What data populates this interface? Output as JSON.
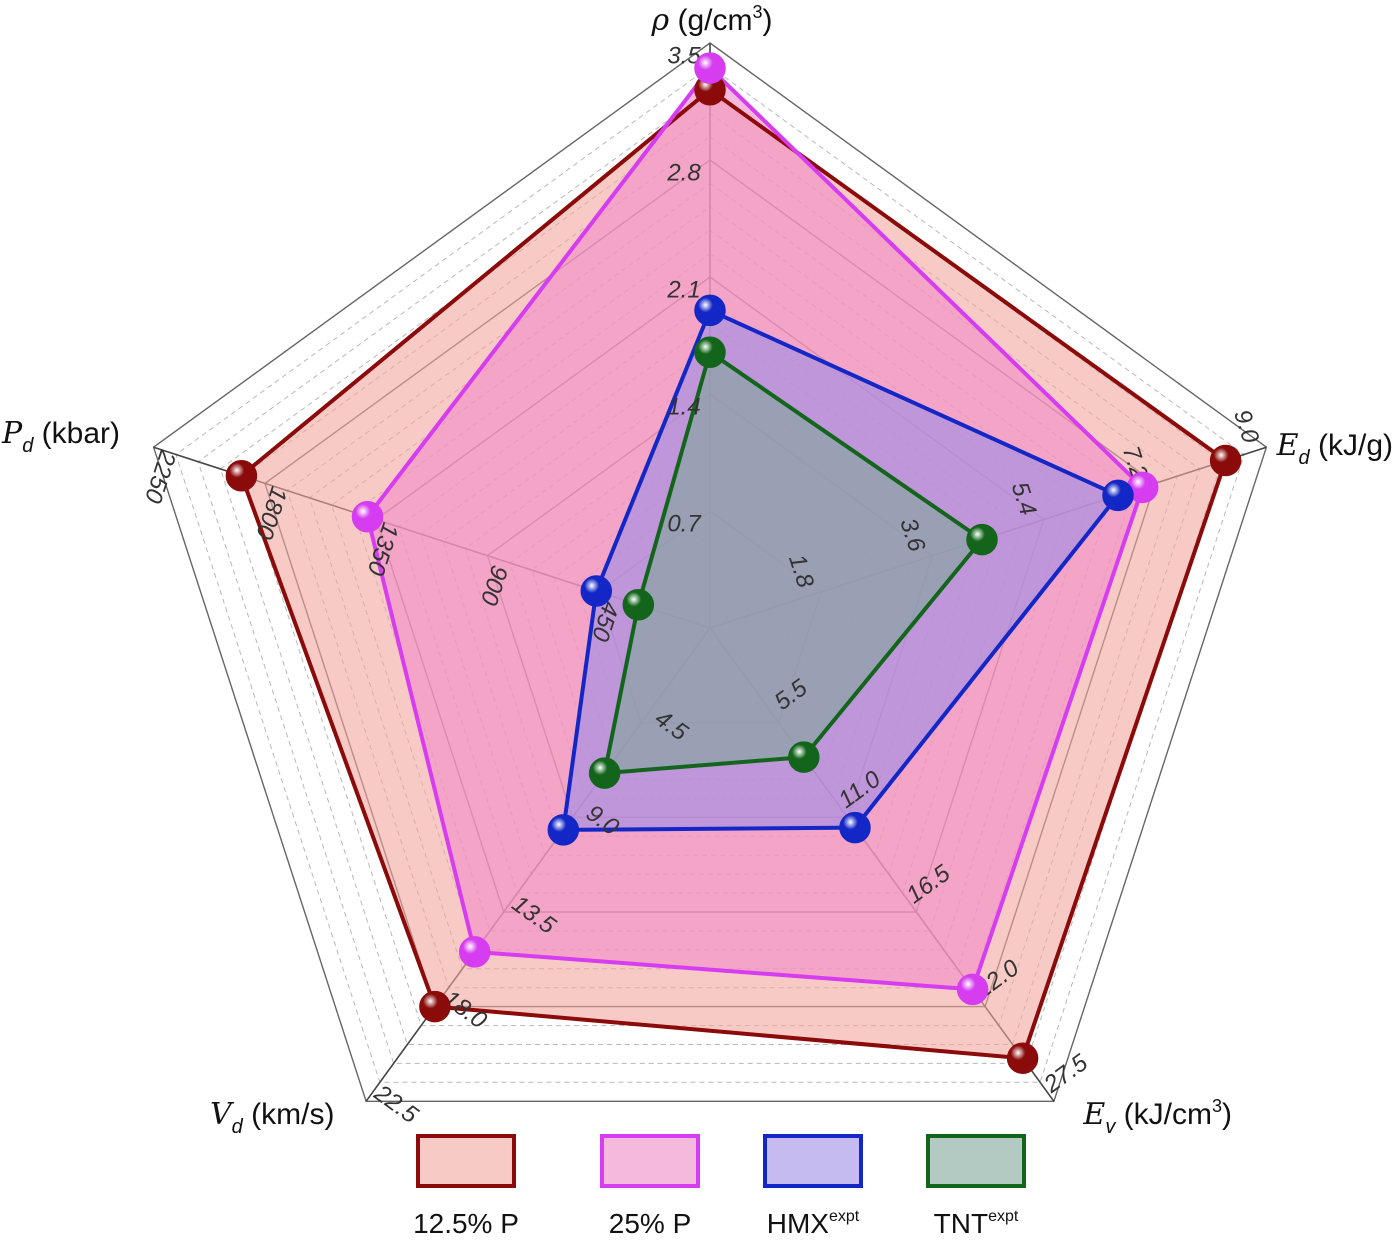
{
  "chart_data": {
    "type": "radar",
    "axes": [
      {
        "key": "density",
        "symbol": "ρ",
        "subscript": "",
        "unit": " (g/cm",
        "unit_sup": "3",
        "unit_end": ")",
        "max": 3.5,
        "tick_labels": [
          "0.7",
          "1.4",
          "2.1",
          "2.8",
          "3.5"
        ]
      },
      {
        "key": "ed",
        "symbol": "E",
        "subscript": "d",
        "unit": " (kJ/g)",
        "unit_sup": "",
        "unit_end": "",
        "max": 9.0,
        "tick_labels": [
          "1.8",
          "3.6",
          "5.4",
          "7.2",
          "9.0"
        ]
      },
      {
        "key": "ev",
        "symbol": "E",
        "subscript": "v",
        "unit": " (kJ/cm",
        "unit_sup": "3",
        "unit_end": ")",
        "max": 27.5,
        "tick_labels": [
          "5.5",
          "11.0",
          "16.5",
          "22.0",
          "27.5"
        ]
      },
      {
        "key": "vd",
        "symbol": "V",
        "subscript": "d",
        "unit": " (km/s)",
        "unit_sup": "",
        "unit_end": "",
        "max": 22.5,
        "tick_labels": [
          "4.5",
          "9.0",
          "13.5",
          "18.0",
          "22.5"
        ]
      },
      {
        "key": "pd",
        "symbol": "P",
        "subscript": "d",
        "unit": " (kbar)",
        "unit_sup": "",
        "unit_end": "",
        "max": 2250,
        "tick_labels": [
          "450",
          "900",
          "1350",
          "1800",
          "2250"
        ]
      }
    ],
    "series": [
      {
        "name": "12.5% P",
        "sup": "",
        "stroke": "#8b0a0a",
        "fill": "#f4a6a0",
        "values": [
          3.22,
          8.34,
          25.0,
          18.0,
          1895
        ]
      },
      {
        "name": "25% P",
        "sup": "",
        "stroke": "#d63cf0",
        "fill": "#f08ac8",
        "values": [
          3.35,
          7.0,
          21.0,
          15.4,
          1385
        ]
      },
      {
        "name": "HMX",
        "sup": "expt",
        "stroke": "#1327c6",
        "fill": "#9f8ee8",
        "values": [
          1.9,
          6.6,
          11.6,
          9.6,
          460
        ]
      },
      {
        "name": "TNT",
        "sup": "expt",
        "stroke": "#12651a",
        "fill": "#7fa79a",
        "values": [
          1.65,
          4.4,
          7.5,
          6.9,
          290
        ]
      }
    ],
    "grid": true,
    "legend_position": "bottom"
  }
}
